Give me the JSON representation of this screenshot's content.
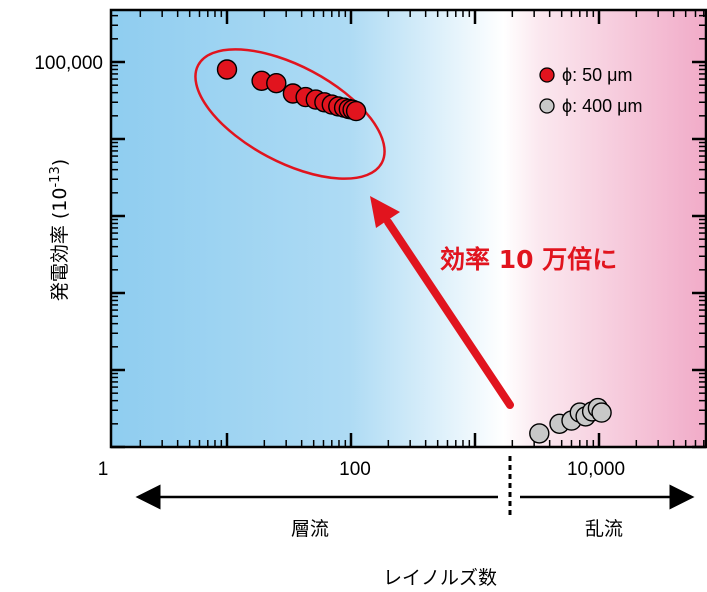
{
  "chart_data": {
    "type": "scatter",
    "x_scale": "log",
    "y_scale": "log",
    "xlim": [
      1,
      80000
    ],
    "ylim_decades": 5,
    "x_ticks": [
      {
        "value": 1,
        "label": "1"
      },
      {
        "value": 100,
        "label": "100"
      },
      {
        "value": 10000,
        "label": "10,000"
      }
    ],
    "y_ticks": [
      {
        "value": 100000,
        "label": "100,000"
      }
    ],
    "ylabel": "発電効率 (10",
    "ylabel_sup": "-13",
    "ylabel_end": ")",
    "xlabel": "レイノルズ数",
    "transition_re": 2000,
    "regions": {
      "laminar": "層流",
      "turbulent": "乱流"
    },
    "annotation": "効率 10 万倍に",
    "series": [
      {
        "name": "ϕ: 50 μm",
        "color": "#e1141e",
        "points": [
          {
            "x": 10,
            "y": 80000
          },
          {
            "x": 19,
            "y": 57000
          },
          {
            "x": 25,
            "y": 53000
          },
          {
            "x": 34,
            "y": 39000
          },
          {
            "x": 43,
            "y": 35000
          },
          {
            "x": 52,
            "y": 32500
          },
          {
            "x": 61,
            "y": 30000
          },
          {
            "x": 70,
            "y": 28000
          },
          {
            "x": 79,
            "y": 26500
          },
          {
            "x": 88,
            "y": 25500
          },
          {
            "x": 96,
            "y": 24500
          },
          {
            "x": 103,
            "y": 24000
          },
          {
            "x": 110,
            "y": 23000
          }
        ]
      },
      {
        "name": "ϕ: 400 μm",
        "color": "#c8c8c8",
        "points": [
          {
            "x": 3300,
            "y": 1.5
          },
          {
            "x": 4800,
            "y": 2.0
          },
          {
            "x": 6000,
            "y": 2.2
          },
          {
            "x": 7000,
            "y": 2.8
          },
          {
            "x": 7800,
            "y": 2.5
          },
          {
            "x": 8800,
            "y": 2.9
          },
          {
            "x": 9800,
            "y": 3.2
          },
          {
            "x": 10500,
            "y": 2.8
          }
        ]
      }
    ]
  }
}
